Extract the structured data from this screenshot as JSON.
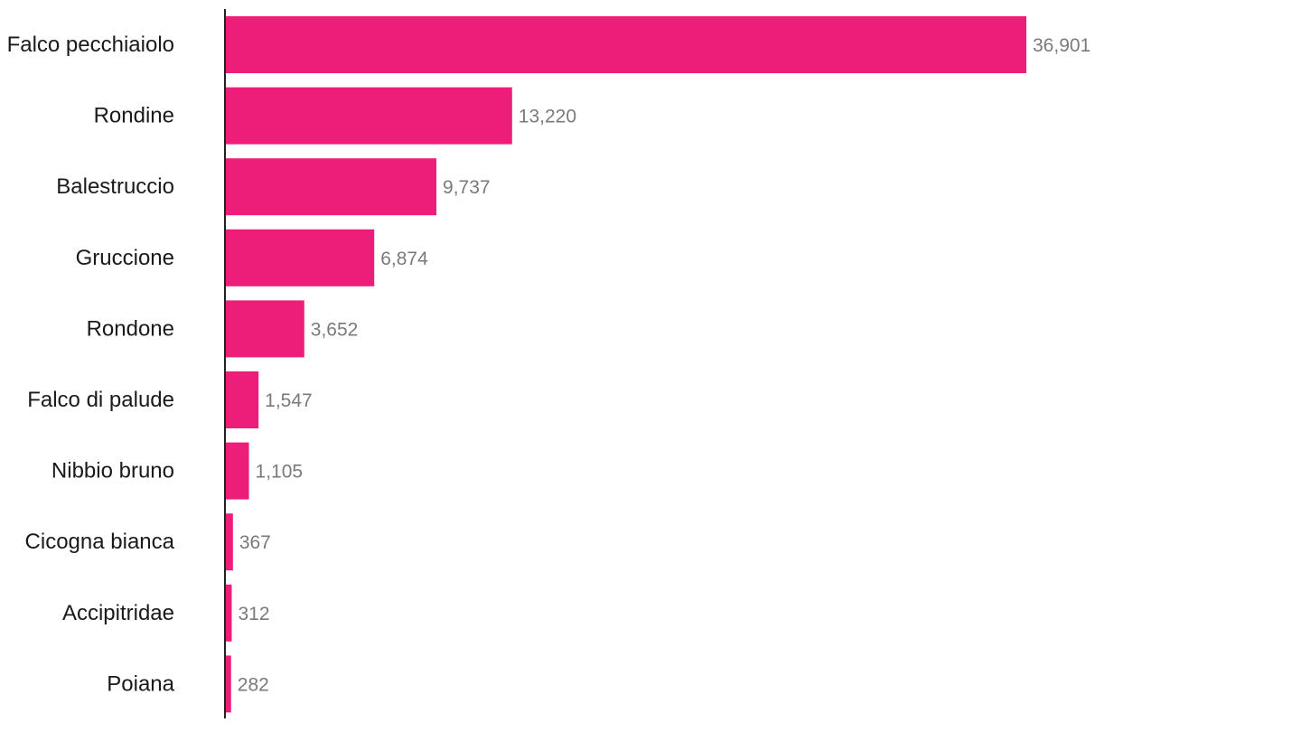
{
  "chart_data": {
    "type": "bar",
    "orientation": "horizontal",
    "categories": [
      "Falco pecchiaiolo",
      "Rondine",
      "Balestruccio",
      "Gruccione",
      "Rondone",
      "Falco di palude",
      "Nibbio bruno",
      "Cicogna bianca",
      "Accipitridae",
      "Poiana"
    ],
    "values": [
      36901,
      13220,
      9737,
      6874,
      3652,
      1547,
      1105,
      367,
      312,
      282
    ],
    "value_labels": [
      "36,901",
      "13,220",
      "9,737",
      "6,874",
      "3,652",
      "1,547",
      "1,105",
      "367",
      "312",
      "282"
    ],
    "xlim": [
      0,
      36901
    ],
    "grid": false,
    "legend": "none",
    "colors": {
      "bar": "#ED1E79",
      "value_text": "#7a7a7a",
      "category_text": "#1a1a1a",
      "axis": "#222222"
    }
  }
}
